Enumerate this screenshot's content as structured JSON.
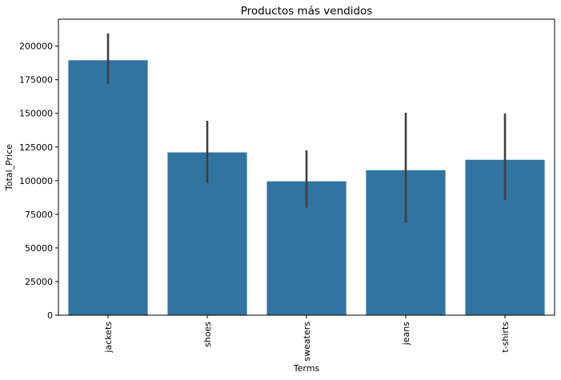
{
  "chart_data": {
    "type": "bar",
    "title": "Productos más vendidos",
    "xlabel": "Terms",
    "ylabel": "Total_Price",
    "categories": [
      "jackets",
      "shoes",
      "sweaters",
      "jeans",
      "t-shirts"
    ],
    "values": [
      189500,
      121000,
      99500,
      107800,
      115500
    ],
    "error_low": [
      172000,
      98000,
      80000,
      68500,
      85500
    ],
    "error_high": [
      209500,
      144500,
      122500,
      150500,
      150000
    ],
    "ylim": [
      0,
      220000
    ],
    "yticks": [
      0,
      25000,
      50000,
      75000,
      100000,
      125000,
      150000,
      175000,
      200000
    ],
    "grid": false,
    "bar_color": "#3274a1",
    "error_color": "#3f3f3f"
  }
}
